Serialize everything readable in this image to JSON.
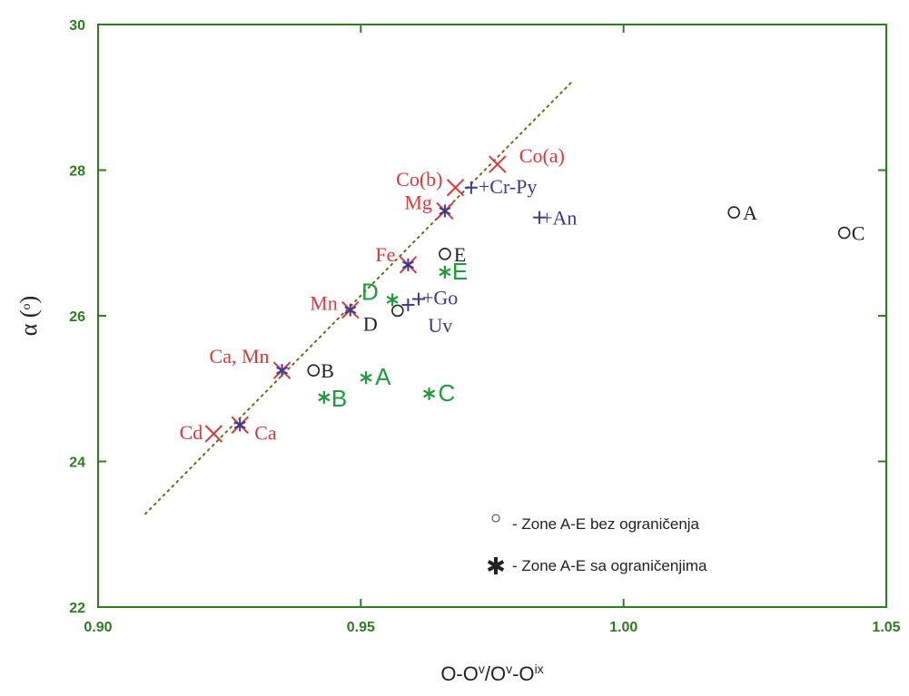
{
  "colors": {
    "axis": "#2e7d1f",
    "red": "#d9393c",
    "blue": "#3b3a8e",
    "green": "#1e9b3a",
    "black": "#222222",
    "trend": "#6b6b1f"
  },
  "chart_data": {
    "type": "scatter",
    "xlabel_parts": [
      "O-O",
      "v",
      "/O",
      "v",
      "-O",
      "ix"
    ],
    "ylabel_parts": [
      "α (",
      "o",
      ")"
    ],
    "xlim": [
      0.9,
      1.05
    ],
    "ylim": [
      22,
      30
    ],
    "xticks": [
      0.9,
      0.95,
      1.0,
      1.05
    ],
    "xtick_labels": [
      "0.90",
      "0.95",
      "1.00",
      "1.05"
    ],
    "yticks": [
      22,
      24,
      26,
      28,
      30
    ],
    "ytick_labels": [
      "22",
      "24",
      "26",
      "28",
      "30"
    ],
    "trendline": {
      "x": [
        0.909,
        0.99
      ],
      "y": [
        23.28,
        29.2
      ],
      "style": "dotted"
    },
    "series": [
      {
        "marker": "x",
        "color": "red",
        "points": [
          {
            "x": 0.976,
            "y": 28.08,
            "label": "Co(a)",
            "color": "red"
          },
          {
            "x": 0.968,
            "y": 27.76,
            "label": "Co(b)",
            "color": "red"
          },
          {
            "x": 0.922,
            "y": 24.38,
            "label": "Cd",
            "color": "red"
          }
        ]
      },
      {
        "marker": "x*",
        "color": "red",
        "points": [
          {
            "x": 0.966,
            "y": 27.44,
            "label": "Mg",
            "color": "red"
          },
          {
            "x": 0.959,
            "y": 26.7,
            "label": "Fe",
            "color": "red"
          },
          {
            "x": 0.948,
            "y": 26.08,
            "label": "Mn",
            "color": "red"
          },
          {
            "x": 0.935,
            "y": 25.25,
            "label": "Ca, Mn",
            "color": "red"
          },
          {
            "x": 0.927,
            "y": 24.5,
            "label": "Ca",
            "color": "red"
          }
        ]
      },
      {
        "marker": "+",
        "color": "blue",
        "points": [
          {
            "x": 0.971,
            "y": 27.76,
            "label": "Cr-Py",
            "color": "blue"
          },
          {
            "x": 0.984,
            "y": 27.35,
            "label": "An",
            "color": "blue"
          },
          {
            "x": 0.961,
            "y": 26.23,
            "label": "Go",
            "color": "blue"
          },
          {
            "x": 0.959,
            "y": 26.15,
            "label": "Uv",
            "color": "blue"
          }
        ]
      },
      {
        "marker": "o",
        "color": "black",
        "points": [
          {
            "x": 1.021,
            "y": 27.42,
            "label": "A",
            "color": "black"
          },
          {
            "x": 1.042,
            "y": 27.14,
            "label": "C",
            "color": "black"
          },
          {
            "x": 0.966,
            "y": 26.85,
            "label": "E",
            "color": "black"
          },
          {
            "x": 0.957,
            "y": 26.07,
            "label": "D",
            "color": "black"
          },
          {
            "x": 0.941,
            "y": 25.25,
            "label": "B",
            "color": "black"
          }
        ]
      },
      {
        "marker": "*",
        "color": "green",
        "points": [
          {
            "x": 0.966,
            "y": 26.6,
            "label": "E",
            "color": "green"
          },
          {
            "x": 0.956,
            "y": 26.22,
            "label": "D",
            "color": "green"
          },
          {
            "x": 0.951,
            "y": 25.15,
            "label": "A",
            "color": "green"
          },
          {
            "x": 0.963,
            "y": 24.93,
            "label": "C",
            "color": "green"
          },
          {
            "x": 0.943,
            "y": 24.88,
            "label": "B",
            "color": "green"
          }
        ]
      }
    ],
    "legend": {
      "placement": "bottom-right",
      "entries": [
        {
          "symbol": "○",
          "text": "-  Zone A-E bez ograničenja"
        },
        {
          "symbol": "✱",
          "text": "-  Zone A-E sa ograničenjima"
        }
      ]
    }
  }
}
